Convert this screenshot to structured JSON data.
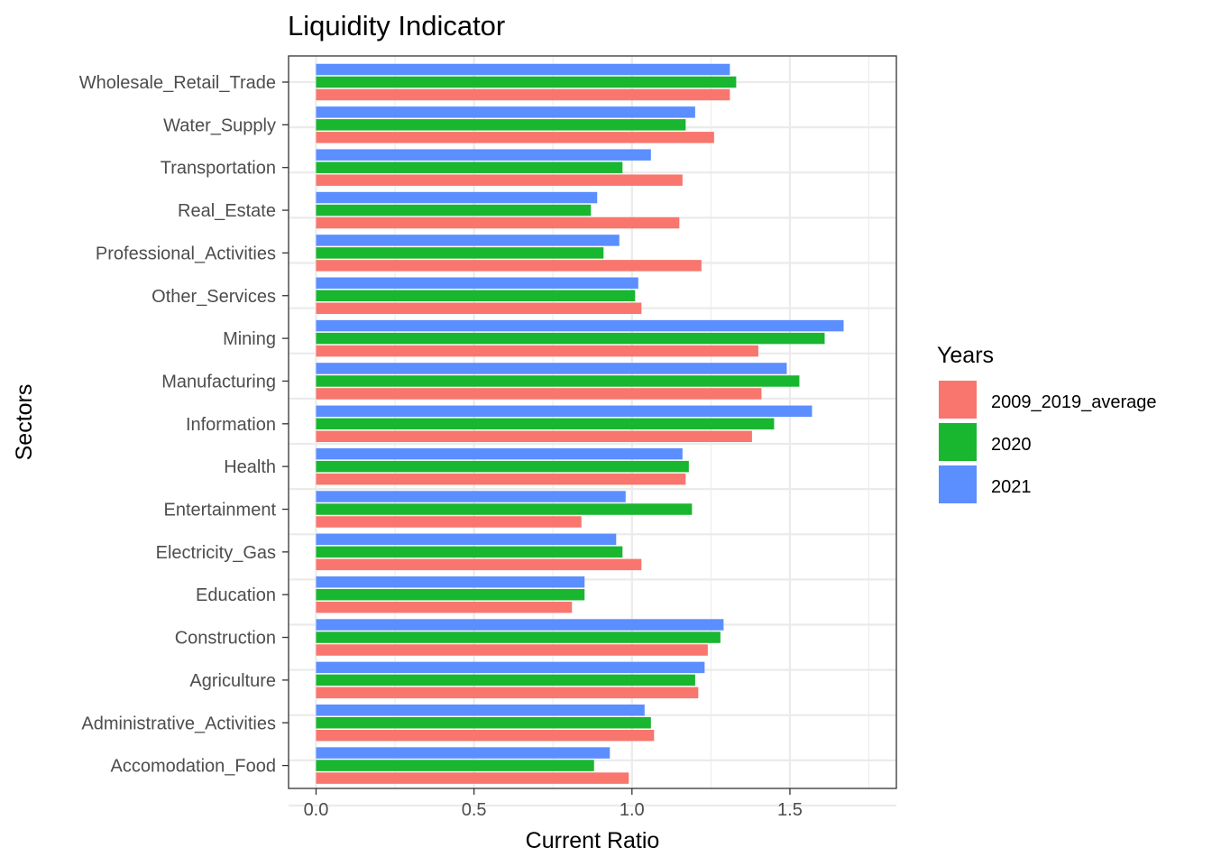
{
  "chart_data": {
    "type": "bar",
    "orientation": "horizontal",
    "title": "Liquidity Indicator",
    "xlabel": "Current Ratio",
    "ylabel": "Sectors",
    "xlim": [
      0,
      1.75
    ],
    "xticks": [
      0.0,
      0.5,
      1.0,
      1.5
    ],
    "xtick_labels": [
      "0.0",
      "0.5",
      "1.0",
      "1.5"
    ],
    "grid": true,
    "legend": {
      "title": "Years",
      "position": "right"
    },
    "categories": [
      "Wholesale_Retail_Trade",
      "Water_Supply",
      "Transportation",
      "Real_Estate",
      "Professional_Activities",
      "Other_Services",
      "Mining",
      "Manufacturing",
      "Information",
      "Health",
      "Entertainment",
      "Electricity_Gas",
      "Education",
      "Construction",
      "Agriculture",
      "Administrative_Activities",
      "Accomodation_Food"
    ],
    "series": [
      {
        "name": "2009_2019_average",
        "color": "#F8766D",
        "values": [
          1.31,
          1.26,
          1.16,
          1.15,
          1.22,
          1.03,
          1.4,
          1.41,
          1.38,
          1.17,
          0.84,
          1.03,
          0.81,
          1.24,
          1.21,
          1.07,
          0.99
        ]
      },
      {
        "name": "2020",
        "color": "#19B630",
        "values": [
          1.33,
          1.17,
          0.97,
          0.87,
          0.91,
          1.01,
          1.61,
          1.53,
          1.45,
          1.18,
          1.19,
          0.97,
          0.85,
          1.28,
          1.2,
          1.06,
          0.88
        ]
      },
      {
        "name": "2021",
        "color": "#5B8EFF",
        "values": [
          1.31,
          1.2,
          1.06,
          0.89,
          0.96,
          1.02,
          1.67,
          1.49,
          1.57,
          1.16,
          0.98,
          0.95,
          0.85,
          1.29,
          1.23,
          1.04,
          0.93
        ]
      }
    ]
  }
}
